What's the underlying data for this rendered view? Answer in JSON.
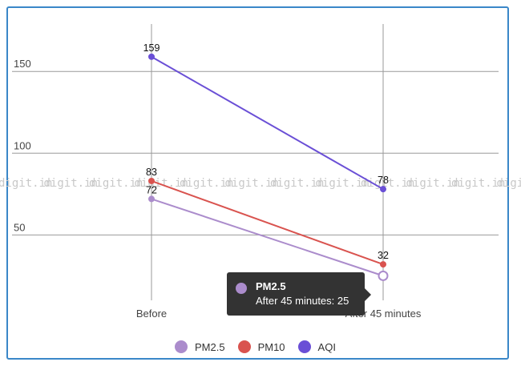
{
  "chart_data": {
    "type": "line",
    "categories": [
      "Before",
      "After 45 minutes"
    ],
    "series": [
      {
        "name": "PM2.5",
        "color": "#ab8ccc",
        "values": [
          72,
          25
        ]
      },
      {
        "name": "PM10",
        "color": "#d9534f",
        "values": [
          83,
          32
        ]
      },
      {
        "name": "AQI",
        "color": "#6a4fd6",
        "values": [
          159,
          78
        ]
      }
    ],
    "data_labels": [
      {
        "series": "PM2.5",
        "category": "Before",
        "text": "72"
      },
      {
        "series": "PM10",
        "category": "Before",
        "text": "83"
      },
      {
        "series": "PM10",
        "category": "After 45 minutes",
        "text": "32"
      },
      {
        "series": "AQI",
        "category": "Before",
        "text": "159"
      },
      {
        "series": "AQI",
        "category": "After 45 minutes",
        "text": "78"
      }
    ],
    "yticks": [
      50,
      100,
      150
    ],
    "ylim": [
      10,
      179
    ],
    "grid": true,
    "legend_position": "bottom",
    "watermark": "digit.in"
  },
  "tooltip": {
    "series": "PM2.5",
    "title": "PM2.5",
    "text": "After 45 minutes: 25",
    "color": "#ab8ccc"
  }
}
